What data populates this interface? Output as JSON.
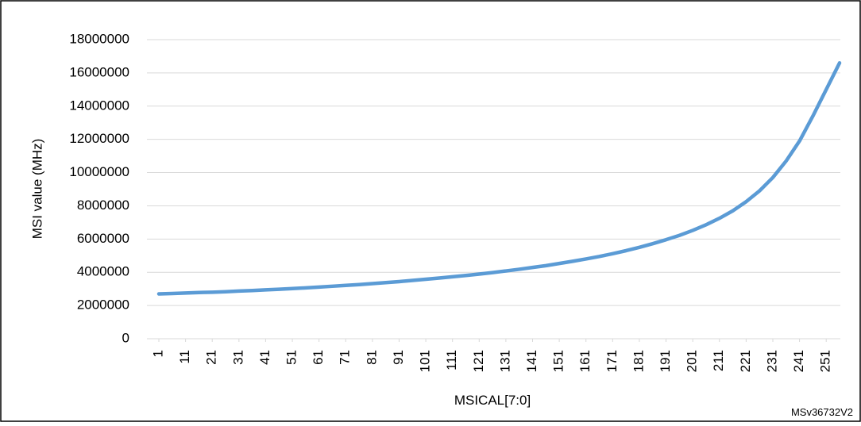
{
  "chart_data": {
    "type": "line",
    "y_label": "MSI value (MHz)",
    "x_label": "MSICAL[7:0]",
    "annotation": "MSv36732V2",
    "x": [
      1,
      6,
      11,
      16,
      21,
      26,
      31,
      36,
      41,
      46,
      51,
      56,
      61,
      66,
      71,
      76,
      81,
      86,
      91,
      96,
      101,
      106,
      111,
      116,
      121,
      126,
      131,
      136,
      141,
      146,
      151,
      156,
      161,
      166,
      171,
      176,
      181,
      186,
      191,
      196,
      201,
      206,
      211,
      216,
      221,
      226,
      231,
      236,
      241,
      246,
      251,
      256
    ],
    "series": [
      {
        "name": "MSI",
        "color": "#5b9bd5",
        "values": [
          2700000,
          2720000,
          2750000,
          2780000,
          2800000,
          2830000,
          2870000,
          2900000,
          2940000,
          2980000,
          3020000,
          3060000,
          3110000,
          3160000,
          3210000,
          3260000,
          3320000,
          3380000,
          3440000,
          3510000,
          3580000,
          3650000,
          3730000,
          3810000,
          3890000,
          3980000,
          4080000,
          4180000,
          4290000,
          4400000,
          4530000,
          4660000,
          4800000,
          4950000,
          5120000,
          5300000,
          5500000,
          5720000,
          5960000,
          6220000,
          6520000,
          6860000,
          7250000,
          7700000,
          8250000,
          8900000,
          9700000,
          10700000,
          11900000,
          13400000,
          15000000,
          16600000
        ]
      }
    ],
    "xlim": [
      1,
      256
    ],
    "xticks": [
      1,
      11,
      21,
      31,
      41,
      51,
      61,
      71,
      81,
      91,
      101,
      111,
      121,
      131,
      141,
      151,
      161,
      171,
      181,
      191,
      201,
      211,
      221,
      231,
      241,
      251
    ],
    "ylim": [
      0,
      18000000
    ],
    "yticks": [
      0,
      2000000,
      4000000,
      6000000,
      8000000,
      10000000,
      12000000,
      14000000,
      16000000,
      18000000
    ],
    "grid": true
  }
}
